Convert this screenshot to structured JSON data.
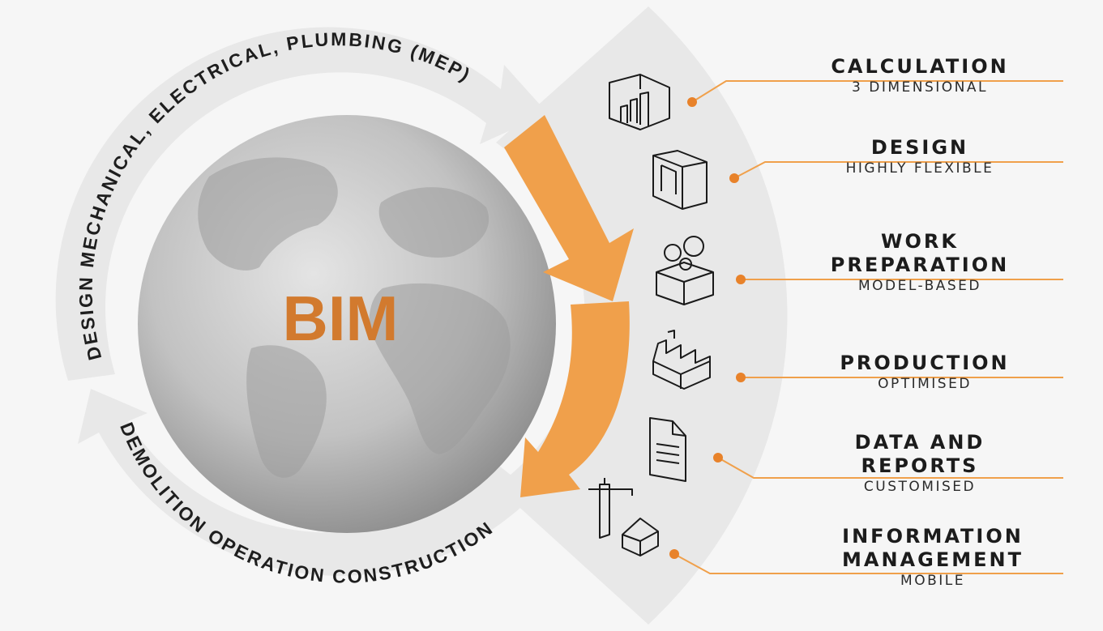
{
  "center": {
    "label": "BIM"
  },
  "cycle": {
    "top_arc": "DESIGN    MECHANICAL, ELECTRICAL, PLUMBING (MEP)",
    "bottom_arc": "DEMOLITION   OPERATION   CONSTRUCTION"
  },
  "colors": {
    "accent": "#f0a04b",
    "bim_text": "#d27a2e",
    "band": "#e8e8e8",
    "text": "#1e1e1e",
    "globe": "#b8b8b8"
  },
  "features": [
    {
      "title": "CALCULATION",
      "subtitle": "3 DIMENSIONAL",
      "icon": "3d-chart-icon"
    },
    {
      "title": "DESIGN",
      "subtitle": "HIGHLY FLEXIBLE",
      "icon": "wall-panel-icon"
    },
    {
      "title": "WORK\nPREPARATION",
      "subtitle": "MODEL-BASED",
      "icon": "gears-box-icon"
    },
    {
      "title": "PRODUCTION",
      "subtitle": "OPTIMISED",
      "icon": "factory-icon"
    },
    {
      "title": "DATA AND\nREPORTS",
      "subtitle": "CUSTOMISED",
      "icon": "document-icon"
    },
    {
      "title": "INFORMATION\nMANAGEMENT",
      "subtitle": "MOBILE",
      "icon": "crane-house-icon"
    }
  ]
}
